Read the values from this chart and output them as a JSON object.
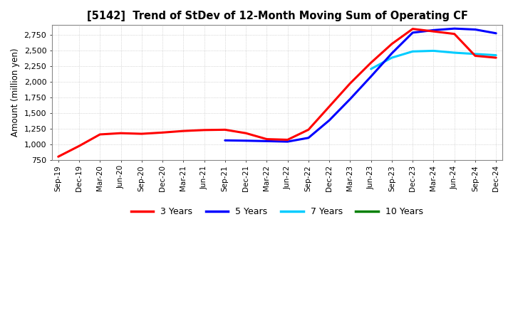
{
  "title": "[5142]  Trend of StDev of 12-Month Moving Sum of Operating CF",
  "ylabel": "Amount (million yen)",
  "ylim": [
    750,
    2900
  ],
  "yticks": [
    750,
    1000,
    1250,
    1500,
    1750,
    2000,
    2250,
    2500,
    2750
  ],
  "background_color": "#ffffff",
  "plot_bg_color": "#ffffff",
  "x_labels": [
    "Sep-19",
    "Dec-19",
    "Mar-20",
    "Jun-20",
    "Sep-20",
    "Dec-20",
    "Mar-21",
    "Jun-21",
    "Sep-21",
    "Dec-21",
    "Mar-22",
    "Jun-22",
    "Sep-22",
    "Dec-22",
    "Mar-23",
    "Jun-23",
    "Sep-23",
    "Dec-23",
    "Mar-24",
    "Jun-24",
    "Sep-24",
    "Dec-24"
  ],
  "series": {
    "3 Years": {
      "color": "#ff0000",
      "data_x": [
        0,
        1,
        2,
        3,
        4,
        5,
        6,
        7,
        8,
        9,
        10,
        11,
        12,
        13,
        14,
        15,
        16,
        17,
        18,
        19,
        20,
        21
      ],
      "data_y": [
        800,
        970,
        1155,
        1175,
        1165,
        1185,
        1210,
        1225,
        1230,
        1175,
        1080,
        1070,
        1230,
        1600,
        1970,
        2300,
        2600,
        2840,
        2800,
        2760,
        2410,
        2380
      ]
    },
    "5 Years": {
      "color": "#0000ff",
      "data_x": [
        8,
        9,
        10,
        11,
        12,
        13,
        14,
        15,
        16,
        17,
        18,
        19,
        20,
        21
      ],
      "data_y": [
        1060,
        1055,
        1048,
        1040,
        1100,
        1380,
        1720,
        2080,
        2450,
        2780,
        2820,
        2845,
        2830,
        2770
      ]
    },
    "7 Years": {
      "color": "#00ccff",
      "data_x": [
        15,
        16,
        17,
        18,
        19,
        20,
        21
      ],
      "data_y": [
        2200,
        2380,
        2480,
        2490,
        2460,
        2440,
        2420
      ]
    },
    "10 Years": {
      "color": "#008000",
      "data_x": [],
      "data_y": []
    }
  }
}
